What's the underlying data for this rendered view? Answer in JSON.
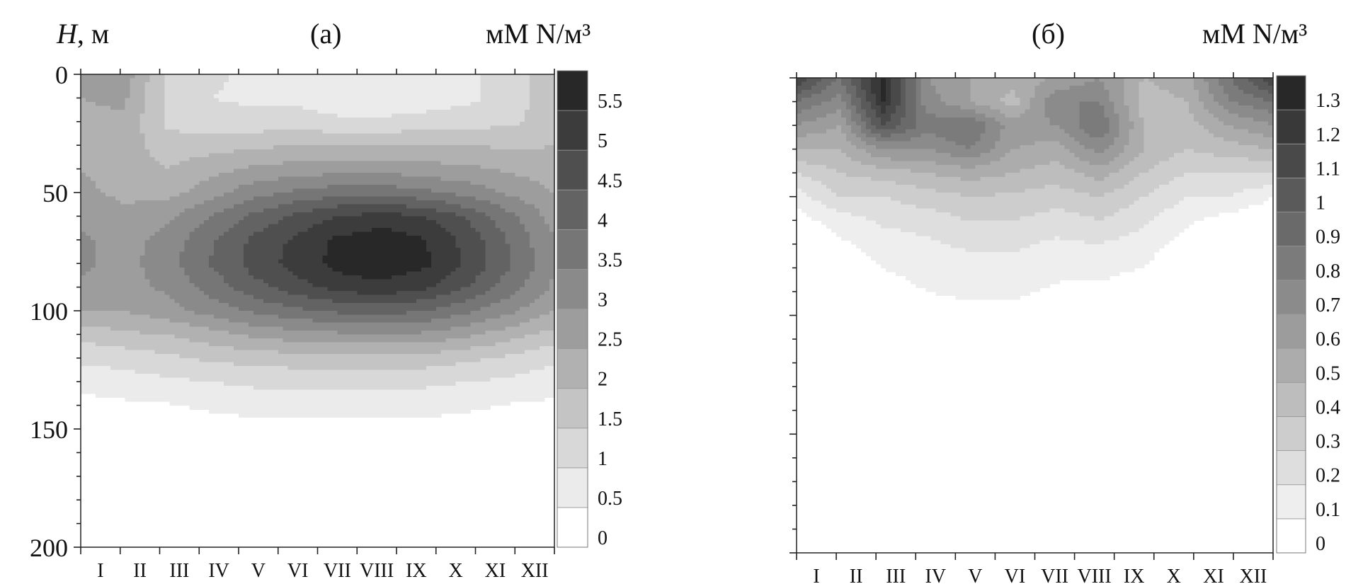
{
  "chart_data": [
    {
      "type": "heatmap",
      "panel_label": "(а)",
      "ylabel_symbol": "H",
      "ylabel_unit": ", м",
      "colorbar_title": "мМ N/м³",
      "x_categories": [
        "I",
        "II",
        "III",
        "IV",
        "V",
        "VI",
        "VII",
        "VIII",
        "IX",
        "X",
        "XI",
        "XII"
      ],
      "y_ticks": [
        "0",
        "50",
        "100",
        "150",
        "200"
      ],
      "ylim": [
        0,
        200
      ],
      "y_inverted": true,
      "colorbar_levels": [
        0,
        0.5,
        1,
        1.5,
        2,
        2.5,
        3,
        3.5,
        4,
        4.5,
        5,
        5.5,
        6
      ],
      "colorbar_labels": [
        "0",
        "0.5",
        "1",
        "1.5",
        "2",
        "2.5",
        "3",
        "3.5",
        "4",
        "4.5",
        "5",
        "5.5"
      ],
      "depth_levels": [
        0,
        10,
        20,
        30,
        40,
        50,
        60,
        70,
        80,
        90,
        100,
        110,
        120,
        130,
        140,
        150,
        160,
        170,
        180,
        190,
        200
      ],
      "values": [
        [
          2.5,
          2.8,
          1.4,
          1.1,
          0.9,
          0.9,
          0.7,
          0.6,
          0.7,
          0.9,
          1.2,
          1.9
        ],
        [
          2.5,
          2.6,
          1.4,
          1.0,
          0.9,
          0.9,
          0.7,
          0.6,
          0.7,
          0.9,
          1.2,
          1.9
        ],
        [
          2.4,
          2.4,
          1.4,
          1.2,
          1.2,
          1.2,
          1.1,
          1.1,
          1.2,
          1.3,
          1.4,
          1.8
        ],
        [
          2.4,
          2.3,
          1.7,
          1.8,
          1.9,
          2.0,
          2.0,
          2.0,
          2.0,
          2.0,
          1.9,
          2.0
        ],
        [
          2.5,
          2.3,
          2.0,
          2.3,
          2.6,
          2.7,
          2.8,
          2.8,
          2.7,
          2.6,
          2.4,
          2.2
        ],
        [
          2.6,
          2.4,
          2.3,
          2.8,
          3.3,
          3.6,
          3.8,
          3.8,
          3.6,
          3.3,
          2.9,
          2.5
        ],
        [
          2.8,
          2.6,
          2.9,
          3.5,
          4.1,
          4.6,
          5.0,
          5.2,
          5.0,
          4.4,
          3.6,
          2.8
        ],
        [
          3.1,
          2.8,
          3.2,
          3.9,
          4.6,
          5.1,
          5.6,
          5.8,
          5.5,
          4.8,
          3.9,
          3.0
        ],
        [
          3.1,
          2.8,
          3.3,
          4.0,
          4.7,
          5.2,
          5.7,
          5.8,
          5.6,
          4.9,
          4.0,
          3.1
        ],
        [
          2.9,
          2.8,
          3.1,
          3.7,
          4.3,
          4.8,
          5.2,
          5.4,
          5.1,
          4.5,
          3.7,
          2.9
        ],
        [
          2.5,
          2.5,
          2.8,
          3.2,
          3.6,
          3.9,
          4.1,
          4.2,
          4.0,
          3.6,
          3.1,
          2.5
        ],
        [
          1.7,
          1.9,
          2.0,
          2.3,
          2.6,
          2.8,
          2.9,
          3.0,
          2.9,
          2.6,
          2.2,
          1.8
        ],
        [
          1.1,
          1.2,
          1.4,
          1.6,
          1.7,
          1.8,
          1.8,
          1.8,
          1.8,
          1.6,
          1.4,
          1.1
        ],
        [
          0.7,
          0.8,
          0.9,
          1.0,
          1.1,
          1.1,
          1.2,
          1.2,
          1.1,
          1.0,
          0.9,
          0.7
        ],
        [
          0.3,
          0.4,
          0.45,
          0.6,
          0.7,
          0.7,
          0.7,
          0.7,
          0.7,
          0.6,
          0.45,
          0.4
        ],
        [
          0.2,
          0.2,
          0.2,
          0.2,
          0.3,
          0.3,
          0.3,
          0.3,
          0.3,
          0.2,
          0.2,
          0.2
        ],
        [
          0.1,
          0.1,
          0.1,
          0.1,
          0.1,
          0.1,
          0.1,
          0.1,
          0.1,
          0.1,
          0.1,
          0.1
        ],
        [
          0.05,
          0.05,
          0.05,
          0.05,
          0.05,
          0.05,
          0.05,
          0.05,
          0.05,
          0.05,
          0.05,
          0.05
        ],
        [
          0,
          0,
          0,
          0,
          0,
          0,
          0,
          0,
          0,
          0,
          0,
          0
        ],
        [
          0,
          0,
          0,
          0,
          0,
          0,
          0,
          0,
          0,
          0,
          0,
          0
        ],
        [
          0,
          0,
          0,
          0,
          0,
          0,
          0,
          0,
          0,
          0,
          0,
          0
        ]
      ]
    },
    {
      "type": "heatmap",
      "panel_label": "(б)",
      "colorbar_title": "мМ N/м³",
      "x_categories": [
        "I",
        "II",
        "III",
        "IV",
        "V",
        "VI",
        "VII",
        "VIII",
        "IX",
        "X",
        "XI",
        "XII"
      ],
      "ylim": [
        0,
        200
      ],
      "y_inverted": true,
      "colorbar_levels": [
        0,
        0.1,
        0.2,
        0.3,
        0.4,
        0.5,
        0.6,
        0.7,
        0.8,
        0.9,
        1,
        1.1,
        1.2,
        1.3,
        1.4
      ],
      "colorbar_labels": [
        "0",
        "0.1",
        "0.2",
        "0.3",
        "0.4",
        "0.5",
        "0.6",
        "0.7",
        "0.8",
        "0.9",
        "1",
        "1.1",
        "1.2",
        "1.3"
      ],
      "depth_levels": [
        0,
        10,
        20,
        30,
        40,
        50,
        60,
        70,
        80,
        90,
        100,
        110,
        120,
        130,
        140,
        150,
        160,
        170,
        180,
        190,
        200
      ],
      "values": [
        [
          1.2,
          0.9,
          1.35,
          0.7,
          0.6,
          0.55,
          0.6,
          0.7,
          0.5,
          0.55,
          0.9,
          1.2
        ],
        [
          0.9,
          0.75,
          1.3,
          0.75,
          0.6,
          0.45,
          0.8,
          0.8,
          0.45,
          0.5,
          0.8,
          0.9
        ],
        [
          0.7,
          0.6,
          1.1,
          0.85,
          0.9,
          0.65,
          0.7,
          0.9,
          0.5,
          0.45,
          0.6,
          0.7
        ],
        [
          0.5,
          0.5,
          0.7,
          0.7,
          0.8,
          0.6,
          0.55,
          0.75,
          0.5,
          0.4,
          0.45,
          0.5
        ],
        [
          0.3,
          0.4,
          0.45,
          0.5,
          0.55,
          0.5,
          0.45,
          0.55,
          0.4,
          0.3,
          0.3,
          0.3
        ],
        [
          0.15,
          0.3,
          0.3,
          0.35,
          0.4,
          0.38,
          0.35,
          0.4,
          0.3,
          0.2,
          0.2,
          0.1
        ],
        [
          0.05,
          0.15,
          0.22,
          0.25,
          0.3,
          0.3,
          0.25,
          0.3,
          0.22,
          0.12,
          0.05,
          0
        ],
        [
          0,
          0.08,
          0.14,
          0.18,
          0.22,
          0.22,
          0.18,
          0.2,
          0.15,
          0.05,
          0,
          0
        ],
        [
          0,
          0.02,
          0.1,
          0.14,
          0.16,
          0.16,
          0.13,
          0.14,
          0.1,
          0,
          0,
          0
        ],
        [
          0,
          0,
          0.05,
          0.1,
          0.12,
          0.12,
          0.08,
          0.06,
          0.02,
          0,
          0,
          0
        ],
        [
          0,
          0,
          0.01,
          0.05,
          0.07,
          0.07,
          0.03,
          0,
          0,
          0,
          0,
          0
        ],
        [
          0,
          0,
          0,
          0,
          0.01,
          0.01,
          0,
          0,
          0,
          0,
          0,
          0
        ],
        [
          0,
          0,
          0,
          0,
          0,
          0,
          0,
          0,
          0,
          0,
          0,
          0
        ],
        [
          0,
          0,
          0,
          0,
          0,
          0,
          0,
          0,
          0,
          0,
          0,
          0
        ],
        [
          0,
          0,
          0,
          0,
          0,
          0,
          0,
          0,
          0,
          0,
          0,
          0
        ],
        [
          0,
          0,
          0,
          0,
          0,
          0,
          0,
          0,
          0,
          0,
          0,
          0
        ],
        [
          0,
          0,
          0,
          0,
          0,
          0,
          0,
          0,
          0,
          0,
          0,
          0
        ],
        [
          0,
          0,
          0,
          0,
          0,
          0,
          0,
          0,
          0,
          0,
          0,
          0
        ],
        [
          0,
          0,
          0,
          0,
          0,
          0,
          0,
          0,
          0,
          0,
          0,
          0
        ],
        [
          0,
          0,
          0,
          0,
          0,
          0,
          0,
          0,
          0,
          0,
          0,
          0
        ],
        [
          0,
          0,
          0,
          0,
          0,
          0,
          0,
          0,
          0,
          0,
          0,
          0
        ]
      ]
    }
  ]
}
